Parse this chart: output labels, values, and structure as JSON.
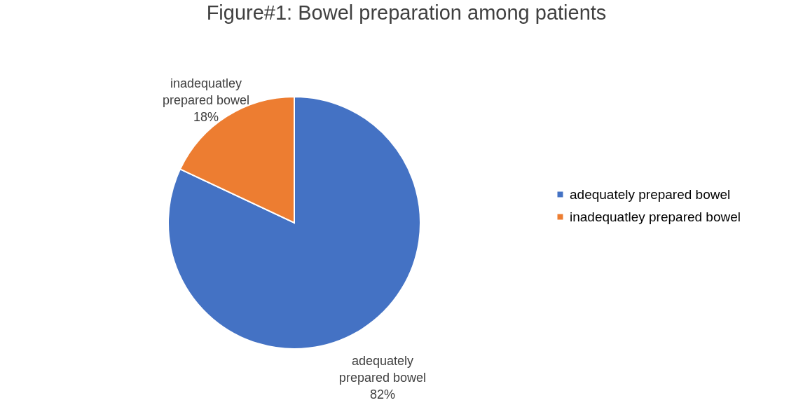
{
  "chart_data": {
    "type": "pie",
    "title": "Figure#1: Bowel preparation among patients",
    "categories": [
      "adequately prepared bowel",
      "inadequatley prepared bowel"
    ],
    "values": [
      82,
      18
    ],
    "colors": [
      "#4472c4",
      "#ed7d31"
    ],
    "value_labels": [
      "82%",
      "18%"
    ],
    "legend": "right"
  }
}
